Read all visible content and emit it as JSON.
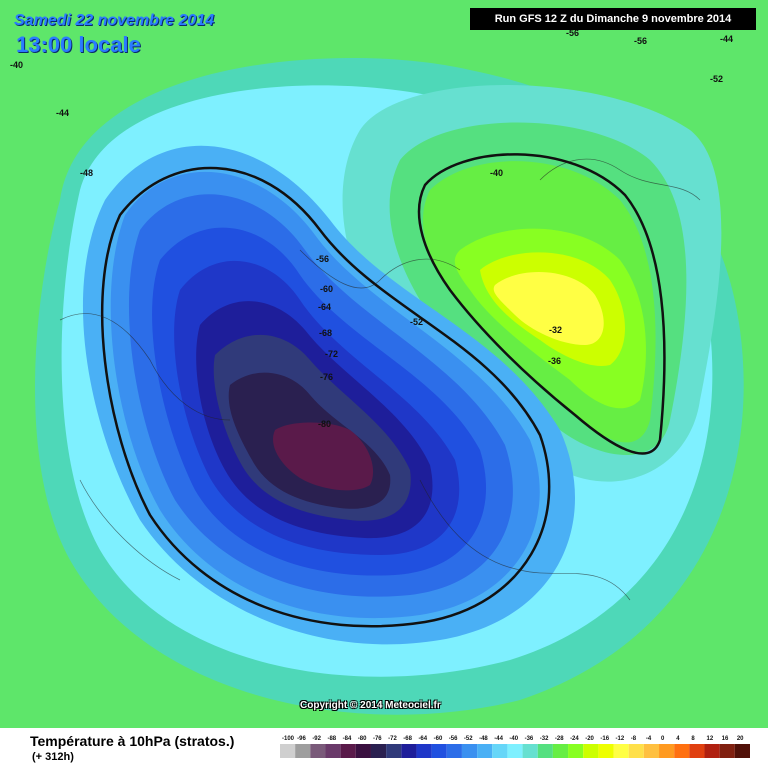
{
  "header": {
    "date": "Samedi 22 novembre 2014",
    "time": "13:00 locale",
    "run": "Run GFS 12 Z du Dimanche 9 novembre 2014"
  },
  "map": {
    "copyright": "Copyright © 2014 Meteociel.fr",
    "contour_labels": [
      "-40",
      "-44",
      "-48",
      "-52",
      "-56",
      "-60",
      "-64",
      "-68",
      "-72",
      "-76",
      "-80",
      "-40",
      "-36",
      "-32",
      "-56",
      "-56",
      "-44",
      "-52"
    ]
  },
  "footer": {
    "title": "Température à 10hPa (stratos.)",
    "lead_time": "(+ 312h)",
    "legend": {
      "ticks": [
        "-100",
        "-96",
        "-92",
        "-88",
        "-84",
        "-80",
        "-76",
        "-72",
        "-68",
        "-64",
        "-60",
        "-56",
        "-52",
        "-48",
        "-44",
        "-40",
        "-36",
        "-32",
        "-28",
        "-24",
        "-20",
        "-16",
        "-12",
        "-8",
        "-4",
        "0",
        "4",
        "8",
        "12",
        "16",
        "20"
      ],
      "colors": [
        "#cfcfcf",
        "#9e9e9e",
        "#7a5a7a",
        "#6a3a6a",
        "#5a1a4a",
        "#3a1040",
        "#2a2050",
        "#303a7a",
        "#1e1e9a",
        "#1f37c8",
        "#2050e0",
        "#2c6de8",
        "#3a90f0",
        "#4ab0f5",
        "#66d6f8",
        "#7ef0ff",
        "#66e0d0",
        "#55e080",
        "#66ee44",
        "#88ff22",
        "#ccff00",
        "#eeff00",
        "#ffff44",
        "#ffe04a",
        "#ffc040",
        "#ff9a20",
        "#ff7010",
        "#e04010",
        "#b02010",
        "#802010",
        "#501008"
      ]
    }
  }
}
